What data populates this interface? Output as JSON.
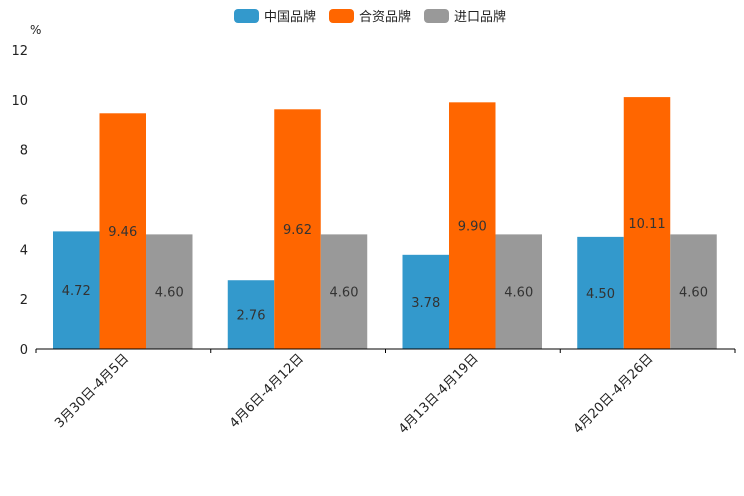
{
  "chart_data": {
    "type": "bar",
    "unit": "%",
    "ylim": [
      0,
      12
    ],
    "yticks": [
      0,
      2,
      4,
      6,
      8,
      10,
      12
    ],
    "categories": [
      "3月30日-4月5日",
      "4月6日-4月12日",
      "4月13日-4月19日",
      "4月20日-4月26日"
    ],
    "series": [
      {
        "name": "中国品牌",
        "color": "#3399CC",
        "values": [
          4.72,
          2.76,
          3.78,
          4.5
        ],
        "labels": [
          "4.72",
          "2.76",
          "3.78",
          "4.50"
        ]
      },
      {
        "name": "合资品牌",
        "color": "#FF6600",
        "values": [
          9.46,
          9.62,
          9.9,
          10.11
        ],
        "labels": [
          "9.46",
          "9.62",
          "9.90",
          "10.11"
        ]
      },
      {
        "name": "进口品牌",
        "color": "#999999",
        "values": [
          4.6,
          4.6,
          4.6,
          4.6
        ],
        "labels": [
          "4.60",
          "4.60",
          "4.60",
          "4.60"
        ]
      }
    ]
  }
}
